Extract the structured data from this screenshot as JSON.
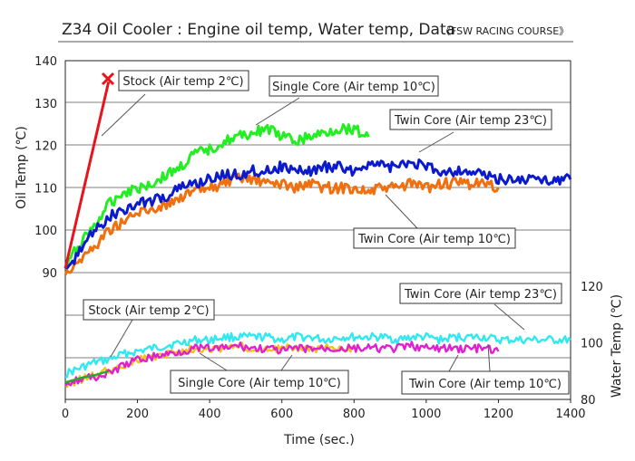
{
  "chart_data": {
    "type": "line",
    "title": "Z34 Oil Cooler : Engine oil temp, Water temp, Data",
    "subtitle": "《FSW RACING COURSE》",
    "xlabel": "Time (sec.)",
    "ylabel": "Oil Temp (℃)",
    "ylabel_right": "Water Temp (℃)",
    "xlim": [
      0,
      1400
    ],
    "ylim": [
      90,
      140
    ],
    "ylim_right": [
      80,
      120
    ],
    "x_ticks": [
      "0",
      "200",
      "400",
      "600",
      "800",
      "1000",
      "1200",
      "1400"
    ],
    "y_ticks": [
      "90",
      "100",
      "110",
      "120",
      "130",
      "140"
    ],
    "y_ticks_right": [
      "80",
      "100",
      "120"
    ],
    "grid": "horizontal",
    "colors": {
      "stock": "#e8141c",
      "single": "#22ee22",
      "twin23": "#0a1acc",
      "twin10": "#f07010",
      "w_stock": "#22aa33",
      "w_single": "#f5c21a",
      "w_twin10": "#e020d0",
      "w_twin23": "#30e8f0"
    },
    "oil_series": [
      {
        "key": "stock",
        "x": [
          0,
          120
        ],
        "y": [
          91,
          135
        ]
      },
      {
        "key": "single",
        "x": [
          0,
          40,
          80,
          120,
          160,
          200,
          240,
          280,
          320,
          360,
          400,
          440,
          480,
          520,
          560,
          600,
          640,
          680,
          720,
          760,
          800,
          840
        ],
        "y": [
          91,
          97,
          101,
          106,
          109,
          110,
          111,
          113,
          115,
          118,
          119,
          121,
          122,
          123,
          124,
          122,
          121,
          122,
          123,
          124,
          124,
          122
        ]
      },
      {
        "key": "twin23",
        "x": [
          0,
          40,
          80,
          120,
          160,
          200,
          240,
          280,
          320,
          360,
          400,
          440,
          480,
          520,
          560,
          600,
          640,
          680,
          720,
          760,
          800,
          840,
          880,
          920,
          960,
          1000,
          1040,
          1080,
          1120,
          1160,
          1200,
          1240,
          1280,
          1320,
          1360,
          1400
        ],
        "y": [
          90,
          95,
          100,
          103,
          105,
          106,
          107,
          108,
          110,
          111,
          112,
          113,
          113,
          114,
          114,
          115,
          114,
          114,
          115,
          115,
          114,
          116,
          115,
          115,
          116,
          115,
          114,
          114,
          114,
          113,
          112,
          112,
          112,
          112,
          112,
          112
        ]
      },
      {
        "key": "twin10",
        "x": [
          0,
          40,
          80,
          120,
          160,
          200,
          240,
          280,
          320,
          360,
          400,
          440,
          480,
          520,
          560,
          600,
          640,
          680,
          720,
          760,
          800,
          840,
          880,
          920,
          960,
          1000,
          1040,
          1080,
          1120,
          1160,
          1200
        ],
        "y": [
          90,
          93,
          96,
          100,
          102,
          104,
          105,
          106,
          108,
          109,
          110,
          111,
          112,
          112,
          111,
          111,
          110,
          111,
          110,
          110,
          110,
          109,
          110,
          110,
          111,
          110,
          111,
          111,
          111,
          111,
          110
        ]
      }
    ],
    "water_series": [
      {
        "key": "w_stock",
        "x": [
          0,
          40,
          80,
          120
        ],
        "y": [
          86,
          87.5,
          88.5,
          90
        ]
      },
      {
        "key": "w_twin23",
        "x": [
          0,
          40,
          80,
          120,
          160,
          200,
          240,
          280,
          320,
          360,
          400,
          440,
          480,
          520,
          560,
          600,
          640,
          680,
          720,
          760,
          800,
          840,
          880,
          920,
          960,
          1000,
          1040,
          1080,
          1120,
          1160,
          1200,
          1240,
          1280,
          1320,
          1360,
          1400
        ],
        "y": [
          89,
          91,
          93,
          94,
          96,
          97,
          98,
          99,
          100,
          101,
          101,
          102,
          102,
          102,
          102,
          101,
          102,
          102,
          101,
          102,
          102,
          102,
          102,
          101,
          102,
          102,
          101,
          102,
          102,
          102,
          101,
          101,
          101,
          101,
          101,
          101
        ]
      },
      {
        "key": "w_single",
        "x": [
          0,
          40,
          80,
          120,
          160,
          200,
          240,
          280,
          320,
          360,
          400,
          440,
          480,
          520,
          560,
          600,
          640,
          680,
          720,
          760,
          800
        ],
        "y": [
          85,
          87,
          89,
          90,
          92,
          94,
          95,
          96,
          97,
          98,
          98,
          98,
          99,
          98,
          98,
          98,
          98,
          98,
          98,
          98,
          98
        ]
      },
      {
        "key": "w_twin10",
        "x": [
          0,
          40,
          80,
          120,
          160,
          200,
          240,
          280,
          320,
          360,
          400,
          440,
          480,
          520,
          560,
          600,
          640,
          680,
          720,
          760,
          800,
          840,
          880,
          920,
          960,
          1000,
          1040,
          1080,
          1120,
          1160,
          1200
        ],
        "y": [
          86,
          87,
          88,
          89,
          92,
          94,
          95,
          96,
          97,
          98,
          98,
          98,
          99,
          98,
          98,
          97,
          98,
          98,
          98,
          98,
          98,
          98,
          98,
          98,
          99,
          98,
          98,
          98,
          98,
          98,
          97
        ]
      }
    ],
    "annotations": [
      {
        "key": "stock_oil",
        "text": "Stock (Air temp 2℃)"
      },
      {
        "key": "single_oil",
        "text": "Single Core (Air temp 10℃)"
      },
      {
        "key": "twin23_oil",
        "text": "Twin Core (Air temp 23℃)"
      },
      {
        "key": "twin10_oil",
        "text": "Twin Core (Air temp 10℃)"
      },
      {
        "key": "stock_water",
        "text": "Stock (Air temp 2℃)"
      },
      {
        "key": "twin23_water",
        "text": "Twin Core (Air temp 23℃)"
      },
      {
        "key": "single_water",
        "text": "Single Core (Air temp 10℃)"
      },
      {
        "key": "twin10_water",
        "text": "Twin Core (Air temp 10℃)"
      }
    ]
  }
}
